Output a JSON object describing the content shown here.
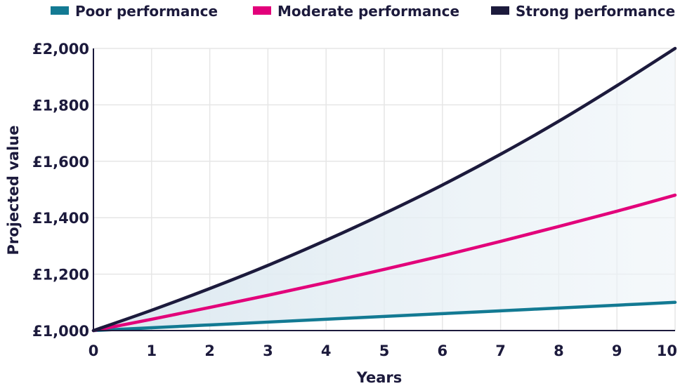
{
  "chart_data": {
    "type": "line",
    "title": "",
    "xlabel": "Years",
    "ylabel": "Projected value",
    "x": [
      0,
      1,
      2,
      3,
      4,
      5,
      6,
      7,
      8,
      9,
      10
    ],
    "xlim": [
      0,
      10
    ],
    "ylim": [
      1000,
      2000
    ],
    "x_ticks": [
      "0",
      "1",
      "2",
      "3",
      "4",
      "5",
      "6",
      "7",
      "8",
      "9",
      "10"
    ],
    "y_ticks": [
      {
        "value": 1000,
        "label": "£1,000"
      },
      {
        "value": 1200,
        "label": "£1,200"
      },
      {
        "value": 1400,
        "label": "£1,400"
      },
      {
        "value": 1600,
        "label": "£1,600"
      },
      {
        "value": 1800,
        "label": "£1,800"
      },
      {
        "value": 2000,
        "label": "£2,000"
      }
    ],
    "grid": true,
    "legend_position": "top",
    "band_fill": {
      "between": [
        "Poor performance",
        "Strong performance"
      ],
      "color": "#dde9f1"
    },
    "series": [
      {
        "name": "Poor performance",
        "color": "#137a93",
        "values": [
          1000,
          1010,
          1020,
          1030,
          1040,
          1050,
          1060,
          1070,
          1080,
          1090,
          1100
        ]
      },
      {
        "name": "Moderate performance",
        "color": "#e2007a",
        "values": [
          1000,
          1040,
          1082,
          1125,
          1170,
          1217,
          1265,
          1316,
          1369,
          1423,
          1480
        ]
      },
      {
        "name": "Strong performance",
        "color": "#1c1a3c",
        "values": [
          1000,
          1072,
          1149,
          1231,
          1320,
          1415,
          1516,
          1625,
          1742,
          1868,
          2000
        ]
      }
    ]
  }
}
